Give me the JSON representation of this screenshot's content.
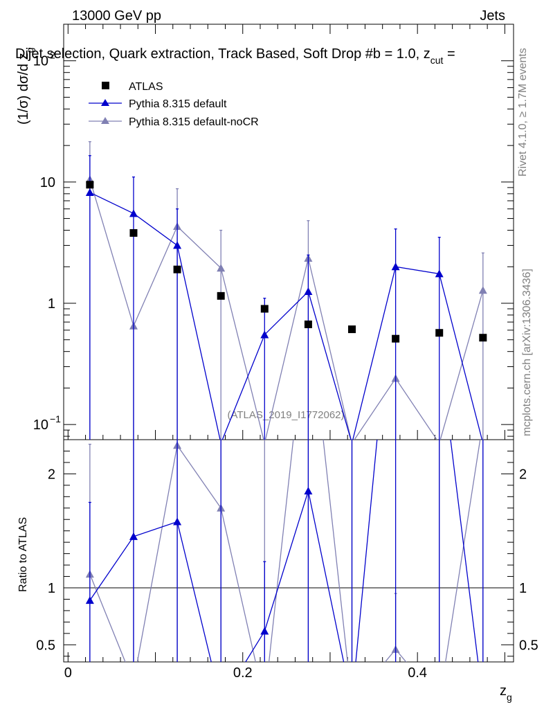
{
  "header": {
    "left": "13000 GeV pp",
    "right": "Jets",
    "title": "Dijet selection, Quark extraction, Track Based, Soft Drop #b = 1.0, z",
    "title_sub": "cut",
    "title_tail": " ="
  },
  "side": {
    "rivet": "Rivet 4.1.0, ≥ 1.7M events",
    "mcplots": "mcplots.cern.ch [arXiv:1306.3436]"
  },
  "watermark": "(ATLAS_2019_I1772062)",
  "colors": {
    "atlas": "#000000",
    "default": "#0000cc",
    "nocr": "#8080b3"
  },
  "chart_data": {
    "type": "line",
    "x": [
      0.025,
      0.075,
      0.125,
      0.175,
      0.225,
      0.275,
      0.325,
      0.375,
      0.425,
      0.475
    ],
    "xlim": [
      -0.005,
      0.51
    ],
    "xticks": [
      0,
      0.2,
      0.4
    ],
    "xtick_labels": [
      "0",
      "0.2",
      "0.4"
    ],
    "xlabel": "z",
    "xlabel_sub": "g",
    "main": {
      "ylabel": "(1/σ) dσ/d z",
      "ylabel_sub": "g",
      "yscale": "log",
      "ylim": [
        0.075,
        200
      ],
      "ytick_labels": [
        {
          "value": 100,
          "base": "10",
          "exp": "2"
        },
        {
          "value": 10,
          "base": "10",
          "exp": ""
        },
        {
          "value": 1,
          "base": "1",
          "exp": ""
        },
        {
          "value": 0.1,
          "base": "10",
          "exp": "−1"
        }
      ],
      "legend": [
        "ATLAS",
        "Pythia 8.315 default",
        "Pythia 8.315 default-noCR"
      ],
      "series": [
        {
          "name": "ATLAS",
          "kind": "points",
          "values": [
            9.5,
            3.8,
            1.9,
            1.15,
            0.9,
            0.67,
            0.61,
            0.51,
            0.57,
            0.52
          ]
        },
        {
          "name": "Pythia 8.315 default",
          "kind": "line",
          "values": [
            8.2,
            5.5,
            3.0,
            0.07,
            0.55,
            1.25,
            0.07,
            2.0,
            1.75,
            0.07
          ],
          "err_up": [
            16.5,
            11.0,
            6.0,
            null,
            1.1,
            2.5,
            null,
            4.1,
            3.5,
            null
          ]
        },
        {
          "name": "Pythia 8.315 default-noCR",
          "kind": "line",
          "values": [
            10.5,
            0.65,
            4.3,
            1.95,
            0.07,
            2.35,
            0.07,
            0.24,
            0.07,
            1.28
          ],
          "err_up": [
            21.5,
            null,
            8.8,
            4.0,
            null,
            4.8,
            null,
            null,
            null,
            2.6
          ]
        }
      ]
    },
    "ratio": {
      "ylabel": "Ratio to ATLAS",
      "ylim": [
        0.35,
        2.3
      ],
      "ytick_labels": [
        "2",
        "1",
        "0.5"
      ],
      "series": [
        {
          "name": "Pythia 8.315 default",
          "values": [
            0.89,
            1.45,
            1.58,
            0.0,
            0.62,
            1.85,
            0.0,
            4.0,
            3.1,
            0.0
          ],
          "err_up": [
            1.75,
            null,
            null,
            null,
            1.23,
            null,
            null,
            null,
            null,
            null
          ]
        },
        {
          "name": "Pythia 8.315 default-noCR",
          "values": [
            1.12,
            0.17,
            2.25,
            1.7,
            0.0,
            3.5,
            0.0,
            0.46,
            0.0,
            2.46
          ],
          "err_up": [
            2.26,
            null,
            null,
            null,
            null,
            null,
            null,
            0.95,
            null,
            null
          ]
        }
      ]
    }
  }
}
